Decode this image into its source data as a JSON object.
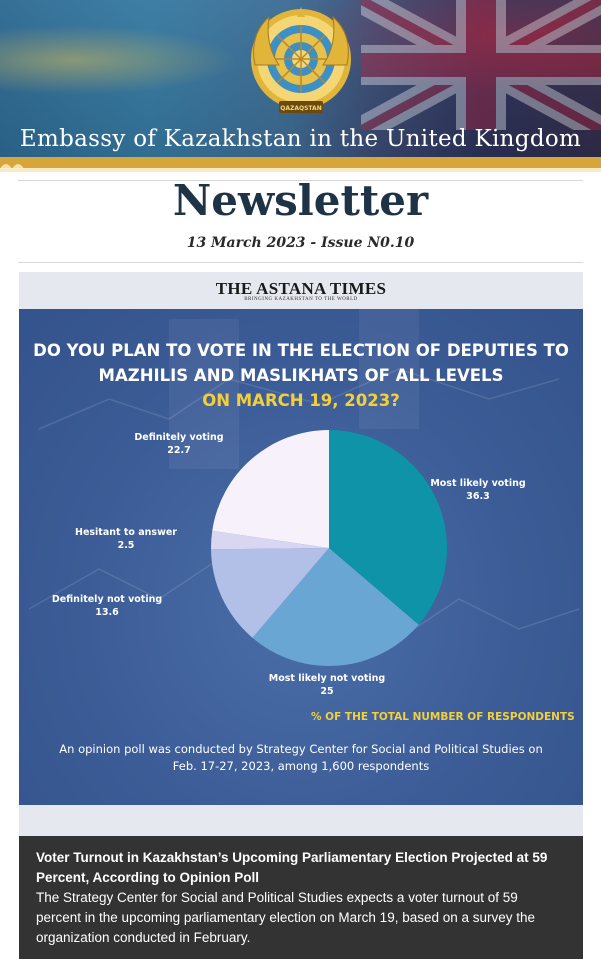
{
  "header": {
    "banner_title": "Embassy of Kazakhstan in the United Kingdom",
    "emblem_text": "QAZAQSTAN"
  },
  "newsletter": {
    "title": "Newsletter",
    "issue": "13 March 2023 - Issue N0.10"
  },
  "infographic": {
    "source": "THE ASTANA TIMES",
    "source_tagline": "BRINGING KAZAKHSTAN TO THE WORLD",
    "question_line1": "DO YOU PLAN TO VOTE IN THE ELECTION OF DEPUTIES TO",
    "question_line2": "MAZHILIS AND MASLIKHATS OF ALL LEVELS",
    "question_line3": "ON MARCH 19, 2023?",
    "note": "% OF THE TOTAL NUMBER OF RESPONDENTS",
    "footnote_line1": "An opinion poll was conducted by Strategy Center for Social and Political Studies on",
    "footnote_line2": "Feb. 17-27, 2023, among 1,600 respondents"
  },
  "chart_data": {
    "type": "pie",
    "title": "DO YOU PLAN TO VOTE IN THE ELECTION OF DEPUTIES TO MAZHILIS AND MASLIKHATS OF ALL LEVELS ON MARCH 19, 2023?",
    "unit": "% OF THE TOTAL NUMBER OF RESPONDENTS",
    "slices": [
      {
        "label": "Most likely voting",
        "value": 36.3,
        "display": "36.3",
        "color": "#0e93a8"
      },
      {
        "label": "Most likely not voting",
        "value": 25,
        "display": "25",
        "color": "#6aa6d3"
      },
      {
        "label": "Definitely not voting",
        "value": 13.6,
        "display": "13.6",
        "color": "#b2bfe6"
      },
      {
        "label": "Hesitant to answer",
        "value": 2.5,
        "display": "2.5",
        "color": "#d8d6f0"
      },
      {
        "label": "Definitely voting",
        "value": 22.7,
        "display": "22.7",
        "color": "#f7f1fb"
      }
    ]
  },
  "article": {
    "title": "Voter Turnout in Kazakhstan’s Upcoming Parliamentary Election Projected at 59 Percent, According to Opinion Poll",
    "body": "The Strategy Center for Social and Political Studies expects a voter turnout of 59 percent in the upcoming parliamentary election on March 19, based on a survey the organization conducted in February."
  },
  "colors": {
    "heading_navy": "#1f3347",
    "infographic_blue": "#3d5f9a",
    "accent_yellow": "#f3cf3a",
    "article_bg": "#333333",
    "emblem_gold": "#e0b53a"
  }
}
